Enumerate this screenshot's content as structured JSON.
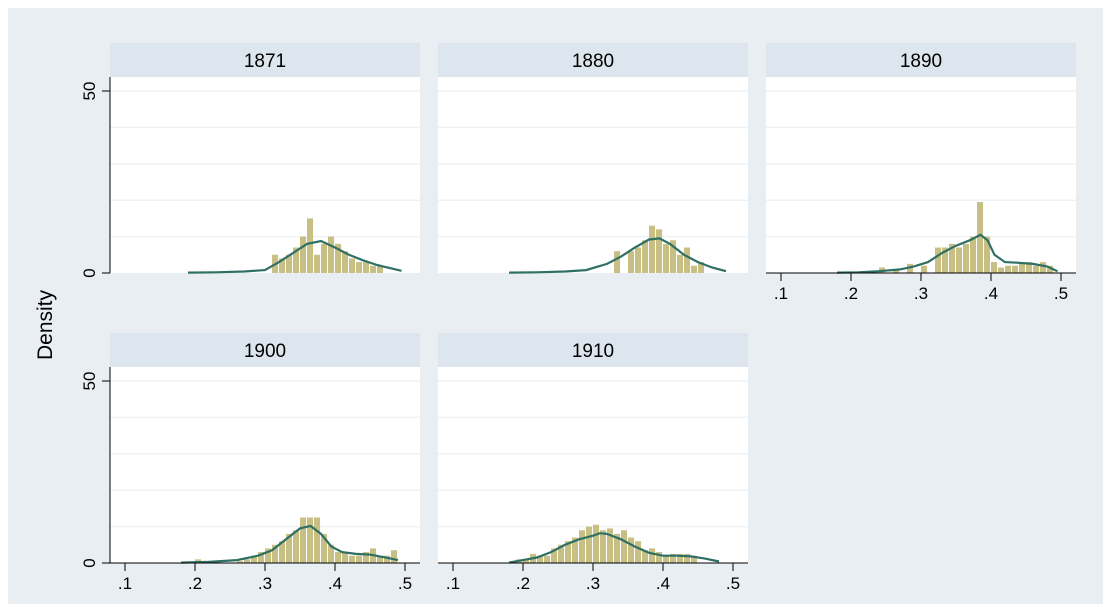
{
  "chart_data": {
    "type": "histogram",
    "ylabel": "Density",
    "xlim": [
      0.08,
      0.52
    ],
    "ylim": [
      0,
      50
    ],
    "y_ticks": [
      "0",
      "50"
    ],
    "x_ticks": [
      ".1",
      ".2",
      ".3",
      ".4",
      ".5"
    ],
    "grid": true,
    "colors": {
      "bars": "#c8bf84",
      "kde": "#2f6f64",
      "strip": "#dde6ee",
      "background": "#e9eef3"
    },
    "bin_width": 0.0095,
    "panels": [
      {
        "title": "1871",
        "bins": [
          [
            0.31,
            5
          ],
          [
            0.32,
            4
          ],
          [
            0.33,
            5
          ],
          [
            0.34,
            7
          ],
          [
            0.35,
            10
          ],
          [
            0.36,
            15
          ],
          [
            0.37,
            5
          ],
          [
            0.38,
            8
          ],
          [
            0.39,
            10
          ],
          [
            0.4,
            8
          ],
          [
            0.41,
            6
          ],
          [
            0.42,
            4
          ],
          [
            0.43,
            3
          ],
          [
            0.44,
            3
          ],
          [
            0.45,
            2
          ],
          [
            0.46,
            2
          ]
        ],
        "kde": [
          [
            0.19,
            0.1
          ],
          [
            0.23,
            0.2
          ],
          [
            0.27,
            0.4
          ],
          [
            0.3,
            0.8
          ],
          [
            0.32,
            3
          ],
          [
            0.34,
            5.5
          ],
          [
            0.36,
            8
          ],
          [
            0.38,
            8.8
          ],
          [
            0.4,
            7
          ],
          [
            0.42,
            5
          ],
          [
            0.44,
            3.5
          ],
          [
            0.46,
            2.2
          ],
          [
            0.48,
            1.3
          ],
          [
            0.495,
            0.6
          ]
        ]
      },
      {
        "title": "1880",
        "bins": [
          [
            0.33,
            6
          ],
          [
            0.35,
            6
          ],
          [
            0.36,
            7
          ],
          [
            0.37,
            9
          ],
          [
            0.38,
            13
          ],
          [
            0.39,
            12
          ],
          [
            0.4,
            8
          ],
          [
            0.41,
            9
          ],
          [
            0.42,
            5
          ],
          [
            0.43,
            7
          ],
          [
            0.44,
            2
          ],
          [
            0.45,
            3
          ]
        ],
        "kde": [
          [
            0.18,
            0.1
          ],
          [
            0.22,
            0.2
          ],
          [
            0.26,
            0.4
          ],
          [
            0.29,
            0.8
          ],
          [
            0.32,
            2.5
          ],
          [
            0.34,
            4.5
          ],
          [
            0.36,
            7
          ],
          [
            0.38,
            9.2
          ],
          [
            0.395,
            9.5
          ],
          [
            0.41,
            8
          ],
          [
            0.43,
            5
          ],
          [
            0.45,
            3
          ],
          [
            0.47,
            1.5
          ],
          [
            0.49,
            0.5
          ]
        ]
      },
      {
        "title": "1890",
        "bins": [
          [
            0.22,
            0.5
          ],
          [
            0.24,
            1.5
          ],
          [
            0.26,
            1
          ],
          [
            0.28,
            2.5
          ],
          [
            0.3,
            2
          ],
          [
            0.32,
            7
          ],
          [
            0.33,
            7
          ],
          [
            0.34,
            8
          ],
          [
            0.35,
            7
          ],
          [
            0.36,
            8
          ],
          [
            0.37,
            10
          ],
          [
            0.38,
            19.5
          ],
          [
            0.39,
            10
          ],
          [
            0.4,
            3
          ],
          [
            0.41,
            1.5
          ],
          [
            0.42,
            2
          ],
          [
            0.43,
            2
          ],
          [
            0.44,
            3
          ],
          [
            0.45,
            3
          ],
          [
            0.46,
            2
          ],
          [
            0.47,
            3
          ],
          [
            0.48,
            2
          ]
        ],
        "kde": [
          [
            0.18,
            0.1
          ],
          [
            0.21,
            0.2
          ],
          [
            0.24,
            0.5
          ],
          [
            0.27,
            1
          ],
          [
            0.29,
            1.8
          ],
          [
            0.31,
            3
          ],
          [
            0.33,
            5.5
          ],
          [
            0.35,
            7.5
          ],
          [
            0.37,
            9
          ],
          [
            0.385,
            10.5
          ],
          [
            0.395,
            9
          ],
          [
            0.405,
            5
          ],
          [
            0.42,
            3
          ],
          [
            0.44,
            2.8
          ],
          [
            0.46,
            2.5
          ],
          [
            0.48,
            1.8
          ],
          [
            0.495,
            0.5
          ]
        ]
      },
      {
        "title": "1900",
        "bins": [
          [
            0.2,
            1
          ],
          [
            0.21,
            0.5
          ],
          [
            0.26,
            0.5
          ],
          [
            0.27,
            1
          ],
          [
            0.28,
            2
          ],
          [
            0.29,
            3
          ],
          [
            0.3,
            4
          ],
          [
            0.31,
            5
          ],
          [
            0.32,
            6
          ],
          [
            0.33,
            8
          ],
          [
            0.34,
            9
          ],
          [
            0.35,
            12.5
          ],
          [
            0.36,
            12.5
          ],
          [
            0.37,
            12.5
          ],
          [
            0.38,
            8
          ],
          [
            0.39,
            5
          ],
          [
            0.4,
            3
          ],
          [
            0.41,
            3
          ],
          [
            0.42,
            2
          ],
          [
            0.43,
            2
          ],
          [
            0.44,
            3
          ],
          [
            0.45,
            4
          ],
          [
            0.46,
            2
          ],
          [
            0.47,
            2
          ],
          [
            0.48,
            3.5
          ]
        ],
        "kde": [
          [
            0.18,
            0.1
          ],
          [
            0.22,
            0.3
          ],
          [
            0.26,
            0.8
          ],
          [
            0.29,
            2
          ],
          [
            0.31,
            3.5
          ],
          [
            0.33,
            6.5
          ],
          [
            0.35,
            9.5
          ],
          [
            0.365,
            10.2
          ],
          [
            0.38,
            8
          ],
          [
            0.395,
            4.5
          ],
          [
            0.41,
            3
          ],
          [
            0.43,
            2.5
          ],
          [
            0.45,
            2.3
          ],
          [
            0.47,
            1.6
          ],
          [
            0.49,
            0.8
          ]
        ]
      },
      {
        "title": "1910",
        "bins": [
          [
            0.19,
            1
          ],
          [
            0.2,
            1
          ],
          [
            0.21,
            2.5
          ],
          [
            0.22,
            2
          ],
          [
            0.23,
            2
          ],
          [
            0.24,
            4
          ],
          [
            0.25,
            5
          ],
          [
            0.26,
            6
          ],
          [
            0.27,
            7
          ],
          [
            0.28,
            9
          ],
          [
            0.29,
            10
          ],
          [
            0.3,
            10.5
          ],
          [
            0.31,
            9
          ],
          [
            0.32,
            9.5
          ],
          [
            0.33,
            8
          ],
          [
            0.34,
            9
          ],
          [
            0.35,
            7
          ],
          [
            0.36,
            6
          ],
          [
            0.37,
            3.5
          ],
          [
            0.38,
            4
          ],
          [
            0.39,
            3
          ],
          [
            0.4,
            2
          ],
          [
            0.41,
            2.5
          ],
          [
            0.42,
            2.5
          ],
          [
            0.43,
            2.5
          ],
          [
            0.44,
            2
          ]
        ],
        "kde": [
          [
            0.18,
            0.1
          ],
          [
            0.2,
            0.8
          ],
          [
            0.22,
            1.5
          ],
          [
            0.24,
            3
          ],
          [
            0.26,
            5
          ],
          [
            0.28,
            6.5
          ],
          [
            0.3,
            7.5
          ],
          [
            0.31,
            8.2
          ],
          [
            0.32,
            8
          ],
          [
            0.34,
            6.5
          ],
          [
            0.36,
            4.5
          ],
          [
            0.38,
            2.8
          ],
          [
            0.4,
            2
          ],
          [
            0.42,
            2
          ],
          [
            0.44,
            1.8
          ],
          [
            0.46,
            1.2
          ],
          [
            0.48,
            0.4
          ]
        ]
      }
    ]
  }
}
